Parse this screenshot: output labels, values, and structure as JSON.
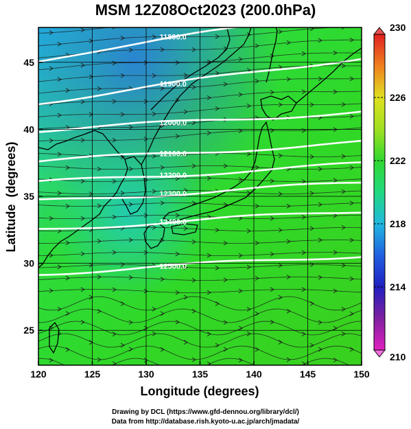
{
  "title": "MSM 12Z08Oct2023 (200.0hPa)",
  "xlabel": "Longitude (degrees)",
  "ylabel": "Latitude  (degrees)",
  "credits": {
    "line1": "Drawing by DCL (https://www.gfd-dennou.org/library/dcl/)",
    "line2": "Data from http://database.rish.kyoto-u.ac.jp/arch/jmadata/"
  },
  "chart_data": {
    "type": "heatmap",
    "x_ticks": [
      120,
      125,
      130,
      135,
      140,
      145,
      150
    ],
    "y_ticks": [
      25,
      30,
      35,
      40,
      45
    ],
    "x_range": [
      120,
      150
    ],
    "y_range": [
      22.4,
      47.6
    ],
    "colorbar": {
      "min": 210,
      "max": 230,
      "ticks": [
        210,
        214,
        218,
        222,
        226,
        230
      ]
    },
    "contours": [
      {
        "label": "11800.0",
        "lon": 132.5,
        "lat": 46.9
      },
      {
        "label": "11900.0",
        "lon": 132.5,
        "lat": 43.4
      },
      {
        "label": "12000.0",
        "lon": 132.5,
        "lat": 40.5
      },
      {
        "label": "12100.0",
        "lon": 132.5,
        "lat": 38.2
      },
      {
        "label": "12200.0",
        "lon": 132.5,
        "lat": 36.6
      },
      {
        "label": "12300.0",
        "lon": 132.5,
        "lat": 35.2
      },
      {
        "label": "12400.0",
        "lon": 132.5,
        "lat": 33.1
      },
      {
        "label": "12500.0",
        "lon": 132.5,
        "lat": 29.8
      }
    ]
  }
}
